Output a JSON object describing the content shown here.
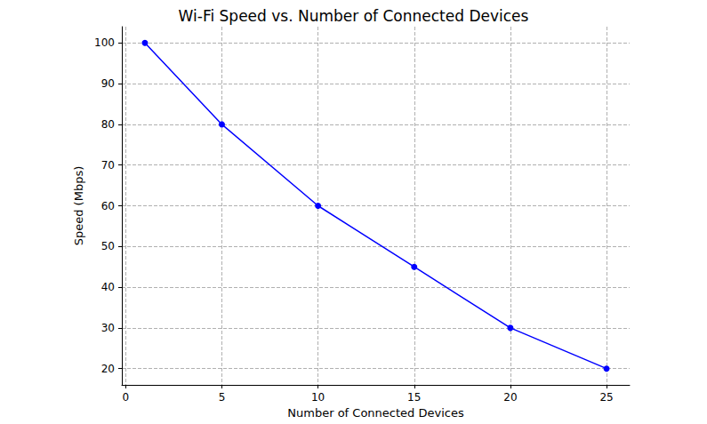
{
  "chart_data": {
    "type": "line",
    "title": "Wi-Fi Speed vs. Number of Connected Devices",
    "x_label": "Number of Connected Devices",
    "y_label": "Speed (Mbps)",
    "x": [
      1,
      5,
      10,
      15,
      20,
      25
    ],
    "values": [
      100,
      80,
      60,
      45,
      30,
      20
    ],
    "color": "#0000ff",
    "marker": "circle",
    "line_style": "solid",
    "xlim": [
      -0.2,
      26.2
    ],
    "xticks": [
      0,
      5,
      10,
      15,
      20,
      25
    ],
    "ylim": [
      16,
      104
    ],
    "yticks": [
      20,
      30,
      40,
      50,
      60,
      70,
      80,
      90,
      100
    ],
    "grid": true
  }
}
